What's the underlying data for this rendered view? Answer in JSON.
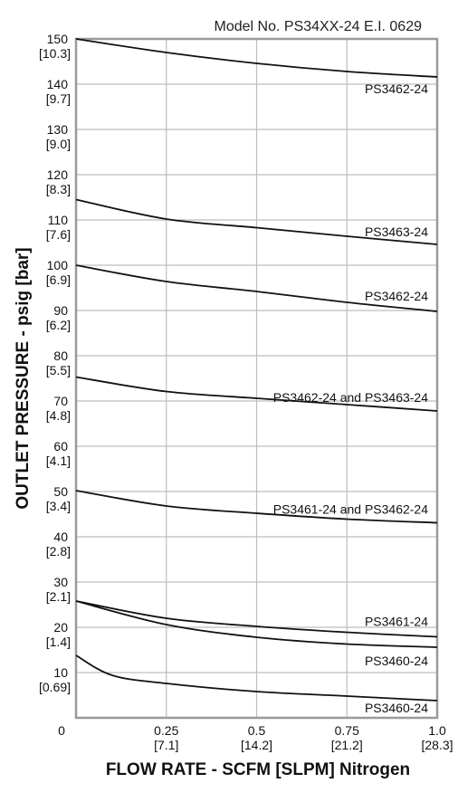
{
  "chart_data": {
    "type": "line",
    "title": "Model No. PS34XX-24 E.I. 0629",
    "xlabel": "FLOW RATE - SCFM [SLPM] Nitrogen",
    "ylabel": "OUTLET PRESSURE - psig [bar]",
    "xlim": [
      0,
      1.0
    ],
    "ylim": [
      0,
      150
    ],
    "grid": true,
    "x_ticks": [
      {
        "value": 0,
        "label": "0",
        "sub": ""
      },
      {
        "value": 0.25,
        "label": "0.25",
        "sub": "[7.1]"
      },
      {
        "value": 0.5,
        "label": "0.5",
        "sub": "[14.2]"
      },
      {
        "value": 0.75,
        "label": "0.75",
        "sub": "[21.2]"
      },
      {
        "value": 1.0,
        "label": "1.0",
        "sub": "[28.3]"
      }
    ],
    "y_ticks": [
      {
        "value": 10,
        "label": "10",
        "sub": "[0.69]"
      },
      {
        "value": 20,
        "label": "20",
        "sub": "[1.4]"
      },
      {
        "value": 30,
        "label": "30",
        "sub": "[2.1]"
      },
      {
        "value": 40,
        "label": "40",
        "sub": "[2.8]"
      },
      {
        "value": 50,
        "label": "50",
        "sub": "[3.4]"
      },
      {
        "value": 60,
        "label": "60",
        "sub": "[4.1]"
      },
      {
        "value": 70,
        "label": "70",
        "sub": "[4.8]"
      },
      {
        "value": 80,
        "label": "80",
        "sub": "[5.5]"
      },
      {
        "value": 90,
        "label": "90",
        "sub": "[6.2]"
      },
      {
        "value": 100,
        "label": "100",
        "sub": "[6.9]"
      },
      {
        "value": 110,
        "label": "110",
        "sub": "[7.6]"
      },
      {
        "value": 120,
        "label": "120",
        "sub": "[8.3]"
      },
      {
        "value": 130,
        "label": "130",
        "sub": "[9.0]"
      },
      {
        "value": 140,
        "label": "140",
        "sub": "[9.7]"
      },
      {
        "value": 150,
        "label": "150",
        "sub": "[10.3]"
      }
    ],
    "series": [
      {
        "name": "PS3462-24",
        "x": [
          0,
          0.25,
          0.5,
          0.75,
          1.0
        ],
        "values": [
          150,
          147,
          144.6,
          142.8,
          141.6
        ]
      },
      {
        "name": "PS3463-24",
        "x": [
          0,
          0.25,
          0.5,
          0.75,
          1.0
        ],
        "values": [
          114.5,
          110.2,
          108.3,
          106.4,
          104.6
        ]
      },
      {
        "name": "PS3462-24",
        "x": [
          0,
          0.25,
          0.5,
          0.75,
          1.0
        ],
        "values": [
          100,
          96.4,
          94.2,
          91.8,
          89.8
        ]
      },
      {
        "name": "PS3462-24 and PS3463-24",
        "x": [
          0,
          0.25,
          0.5,
          0.75,
          1.0
        ],
        "values": [
          75.3,
          72.1,
          70.6,
          69.2,
          67.8
        ]
      },
      {
        "name": "PS3461-24 and PS3462-24",
        "x": [
          0,
          0.25,
          0.5,
          0.75,
          1.0
        ],
        "values": [
          50.2,
          46.8,
          45.2,
          43.9,
          43.1
        ]
      },
      {
        "name": "PS3461-24",
        "x": [
          0,
          0.25,
          0.5,
          0.75,
          1.0
        ],
        "values": [
          25.8,
          22.0,
          20.2,
          18.9,
          17.9
        ]
      },
      {
        "name": "PS3460-24",
        "x": [
          0,
          0.25,
          0.5,
          0.75,
          1.0
        ],
        "values": [
          25.8,
          20.6,
          17.8,
          16.3,
          15.6
        ]
      },
      {
        "name": "PS3460-24",
        "x": [
          0,
          0.1,
          0.25,
          0.5,
          0.75,
          1.0
        ],
        "values": [
          13.8,
          9.4,
          7.6,
          5.8,
          4.8,
          3.8
        ]
      }
    ]
  }
}
